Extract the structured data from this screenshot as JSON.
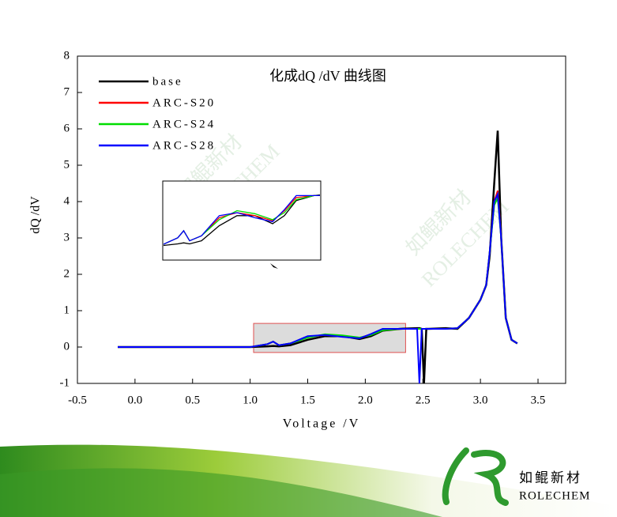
{
  "chart_data": {
    "type": "line",
    "title": "化成dQ /dV 曲线图",
    "x_label": "Voltage /V",
    "y_label": "dQ /dV",
    "x": [
      -0.15,
      1.0,
      1.15,
      1.2,
      1.25,
      1.35,
      1.5,
      1.65,
      1.8,
      1.95,
      2.05,
      2.15,
      2.3,
      2.45,
      2.47,
      2.49,
      2.51,
      2.53,
      2.55,
      2.7,
      2.8,
      2.9,
      3.0,
      3.05,
      3.08,
      3.12,
      3.15,
      3.18,
      3.22,
      3.27,
      3.32
    ],
    "series": [
      {
        "name": "base",
        "color": "#000000",
        "values": [
          0,
          0,
          0.02,
          0.03,
          0.02,
          0.05,
          0.2,
          0.3,
          0.3,
          0.22,
          0.3,
          0.45,
          0.5,
          0.52,
          0.52,
          0.5,
          -1,
          0.5,
          0.5,
          0.52,
          0.5,
          0.8,
          1.3,
          1.7,
          2.5,
          4.5,
          5.95,
          3.0,
          0.8,
          0.2,
          0.1
        ]
      },
      {
        "name": "ARC-S20",
        "color": "#ff0000",
        "values": [
          0,
          0,
          0.08,
          0.15,
          0.05,
          0.1,
          0.28,
          0.33,
          0.3,
          0.25,
          0.35,
          0.48,
          0.5,
          0.5,
          0.5,
          0.5,
          0.5,
          0.5,
          0.5,
          0.5,
          0.52,
          0.8,
          1.3,
          1.7,
          2.6,
          4.0,
          4.3,
          3.0,
          0.8,
          0.2,
          0.1
        ]
      },
      {
        "name": "ARC-S24",
        "color": "#00dd00",
        "values": [
          0,
          0,
          0.08,
          0.15,
          0.05,
          0.1,
          0.26,
          0.35,
          0.32,
          0.26,
          0.33,
          0.46,
          0.5,
          0.5,
          0.5,
          0.5,
          0.5,
          0.5,
          0.5,
          0.5,
          0.52,
          0.8,
          1.3,
          1.7,
          2.6,
          3.9,
          4.1,
          3.0,
          0.8,
          0.2,
          0.1
        ]
      },
      {
        "name": "ARC-S28",
        "color": "#0000ff",
        "values": [
          0,
          0,
          0.08,
          0.15,
          0.05,
          0.1,
          0.3,
          0.33,
          0.28,
          0.24,
          0.36,
          0.5,
          0.5,
          0.5,
          -1,
          0.5,
          0.5,
          0.5,
          0.5,
          0.5,
          0.52,
          0.8,
          1.3,
          1.7,
          2.6,
          4.0,
          4.2,
          3.0,
          0.8,
          0.2,
          0.1
        ]
      }
    ],
    "xlim": [
      -0.5,
      3.74
    ],
    "ylim": [
      -1,
      8
    ],
    "xticks": [
      -0.5,
      {
        "value": 0,
        "label": "0.0"
      },
      0.5,
      {
        "value": 1,
        "label": "1.0"
      },
      1.5,
      {
        "value": 2,
        "label": "2.0"
      },
      2.5,
      {
        "value": 3,
        "label": "3.0"
      },
      3.5
    ],
    "yticks": [
      -1,
      0,
      1,
      2,
      3,
      4,
      5,
      6,
      7,
      8
    ],
    "legend": "upper left"
  },
  "logo": {
    "name": "如鲲新材",
    "name_en": "ROLECHEM"
  }
}
